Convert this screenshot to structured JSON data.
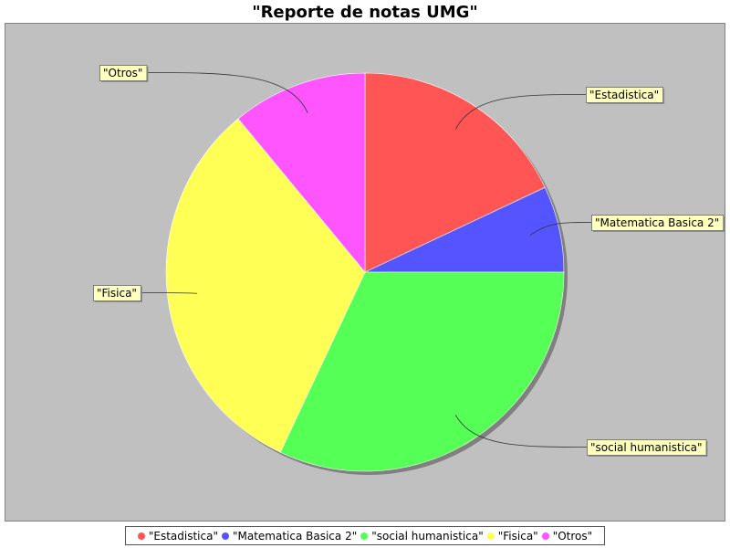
{
  "chart_data": {
    "type": "pie",
    "title": "\"Reporte de notas UMG\"",
    "slices": [
      {
        "label": "\"Estadistica\"",
        "value": 18,
        "color": "#ff5555"
      },
      {
        "label": "\"Matematica Basica 2\"",
        "value": 7,
        "color": "#5555ff"
      },
      {
        "label": "\"social humanistica\"",
        "value": 32,
        "color": "#55ff55"
      },
      {
        "label": "\"Fisica\"",
        "value": 32,
        "color": "#ffff55"
      },
      {
        "label": "\"Otros\"",
        "value": 11,
        "color": "#ff55ff"
      }
    ],
    "legend_position": "bottom",
    "plot_background": "#c0c0c0",
    "label_background": "#ffffc0"
  }
}
